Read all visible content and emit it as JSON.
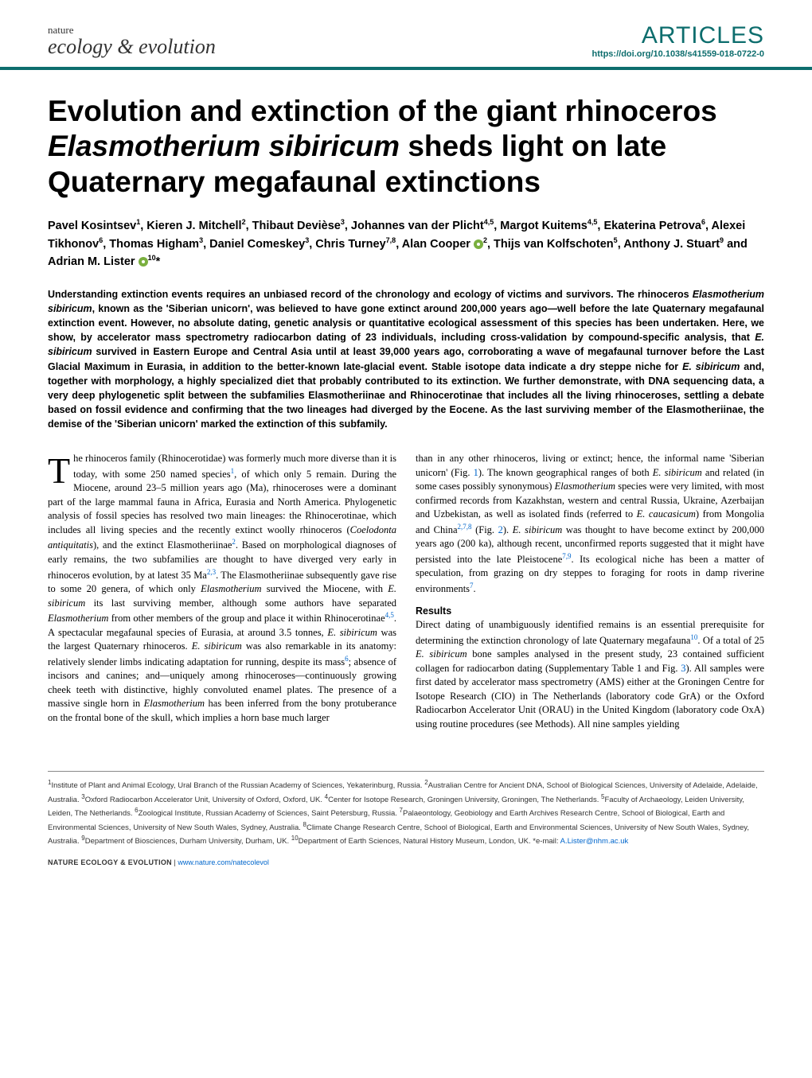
{
  "header": {
    "journal_top": "nature",
    "journal_bottom": "ecology & evolution",
    "section_label": "ARTICLES",
    "doi": "https://doi.org/10.1038/s41559-018-0722-0"
  },
  "title_parts": {
    "line1": "Evolution and extinction of the giant rhinoceros ",
    "species": "Elasmotherium sibiricum",
    "line2": " sheds light on late Quaternary megafaunal extinctions"
  },
  "authors_html": "Pavel Kosintsev<sup>1</sup>, Kieren J. Mitchell<sup>2</sup>, Thibaut Devièse<sup>3</sup>, Johannes van der Plicht<sup>4,5</sup>, Margot Kuitems<sup>4,5</sup>, Ekaterina Petrova<sup>6</sup>, Alexei Tikhonov<sup>6</sup>, Thomas Higham<sup>3</sup>, Daniel Comeskey<sup>3</sup>, Chris Turney<sup>7,8</sup>, Alan Cooper <span class='orcid' data-name='orcid-icon' data-interactable='false'></span><sup>2</sup>, Thijs van Kolfschoten<sup>5</sup>, Anthony J. Stuart<sup>9</sup> and Adrian M. Lister <span class='orcid' data-name='orcid-icon' data-interactable='false'></span><sup>10</sup>*",
  "abstract": "Understanding extinction events requires an unbiased record of the chronology and ecology of victims and survivors. The rhinoceros <span class='species'>Elasmotherium sibiricum</span>, known as the 'Siberian unicorn', was believed to have gone extinct around 200,000 years ago—well before the late Quaternary megafaunal extinction event. However, no absolute dating, genetic analysis or quantitative ecological assessment of this species has been undertaken. Here, we show, by accelerator mass spectrometry radiocarbon dating of 23 individuals, including cross-validation by compound-specific analysis, that <span class='species'>E. sibiricum</span> survived in Eastern Europe and Central Asia until at least 39,000 years ago, corroborating a wave of megafaunal turnover before the Last Glacial Maximum in Eurasia, in addition to the better-known late-glacial event. Stable isotope data indicate a dry steppe niche for <span class='species'>E. sibiricum</span> and, together with morphology, a highly specialized diet that probably contributed to its extinction. We further demonstrate, with DNA sequencing data, a very deep phylogenetic split between the subfamilies Elasmotheriinae and Rhinocerotinae that includes all the living rhinoceroses, settling a debate based on fossil evidence and confirming that the two lineages had diverged by the Eocene. As the last surviving member of the Elasmotheriinae, the demise of the 'Siberian unicorn' marked the extinction of this subfamily.",
  "body": {
    "p1": "he rhinoceros family (Rhinocerotidae) was formerly much more diverse than it is today, with some 250 named species<span class='ref'>1</span>, of which only 5 remain. During the Miocene, around 23–5 million years ago (Ma), rhinoceroses were a dominant part of the large mammal fauna in Africa, Eurasia and North America. Phylogenetic analysis of fossil species has resolved two main lineages: the Rhinocerotinae, which includes all living species and the recently extinct woolly rhinoceros (<span class='species'>Coelodonta antiquitatis</span>), and the extinct Elasmotheriinae<span class='ref'>2</span>. Based on morphological diagnoses of early remains, the two subfamilies are thought to have diverged very early in rhinoceros evolution, by at latest 35 Ma<span class='ref'>2,3</span>. The Elasmotheriinae subsequently gave rise to some 20 genera, of which only <span class='species'>Elasmotherium</span> survived the Miocene, with <span class='species'>E. sibiricum</span> its last surviving member, although some authors have separated <span class='species'>Elasmotherium</span> from other members of the group and place it within Rhinocerotinae<span class='ref'>4,5</span>. A spectacular megafaunal species of Eurasia, at around 3.5 tonnes, <span class='species'>E. sibiricum</span> was the largest Quaternary rhinoceros. <span class='species'>E. sibiricum</span> was also remarkable in its anatomy: relatively slender limbs indicating adaptation for running, despite its mass<span class='ref'>6</span>; absence of incisors and canines; and—uniquely among rhinoceroses—continuously growing cheek teeth with distinctive, highly convoluted enamel plates. The presence of a massive single horn in <span class='species'>Elasmotherium</span> has been inferred from the bony protuberance on the frontal bone of the skull, which implies a horn base much larger",
    "p2": "than in any other rhinoceros, living or extinct; hence, the informal name 'Siberian unicorn' (Fig. <span class='figref'>1</span>). The known geographical ranges of both <span class='species'>E. sibiricum</span> and related (in some cases possibly synonymous) <span class='species'>Elasmotherium</span> species were very limited, with most confirmed records from Kazakhstan, western and central Russia, Ukraine, Azerbaijan and Uzbekistan, as well as isolated finds (referred to <span class='species'>E. caucasicum</span>) from Mongolia and China<span class='ref'>2,7,8</span> (Fig. <span class='figref'>2</span>). <span class='species'>E. sibiricum</span> was thought to have become extinct by 200,000 years ago (200 ka), although recent, unconfirmed reports suggested that it might have persisted into the late Pleistocene<span class='ref'>7,9</span>. Its ecological niche has been a matter of speculation, from grazing on dry steppes to foraging for roots in damp riverine environments<span class='ref'>7</span>.",
    "results_head": "Results",
    "p3": "Direct dating of unambiguously identified remains is an essential prerequisite for determining the extinction chronology of late Quaternary megafauna<span class='ref'>10</span>. Of a total of 25 <span class='species'>E. sibiricum</span> bone samples analysed in the present study, 23 contained sufficient collagen for radiocarbon dating (Supplementary Table 1 and Fig. <span class='figref'>3</span>). All samples were first dated by accelerator mass spectrometry (AMS) either at the Groningen Centre for Isotope Research (CIO) in The Netherlands (laboratory code GrA) or the Oxford Radiocarbon Accelerator Unit (ORAU) in the United Kingdom (laboratory code OxA) using routine procedures (see Methods). All nine samples yielding"
  },
  "affiliations": "<sup>1</sup>Institute of Plant and Animal Ecology, Ural Branch of the Russian Academy of Sciences, Yekaterinburg, Russia. <sup>2</sup>Australian Centre for Ancient DNA, School of Biological Sciences, University of Adelaide, Adelaide, Australia. <sup>3</sup>Oxford Radiocarbon Accelerator Unit, University of Oxford, Oxford, UK. <sup>4</sup>Center for Isotope Research, Groningen University, Groningen, The Netherlands. <sup>5</sup>Faculty of Archaeology, Leiden University, Leiden, The Netherlands. <sup>6</sup>Zoological Institute, Russian Academy of Sciences, Saint Petersburg, Russia. <sup>7</sup>Palaeontology, Geobiology and Earth Archives Research Centre, School of Biological, Earth and Environmental Sciences, University of New South Wales, Sydney, Australia. <sup>8</sup>Climate Change Research Centre, School of Biological, Earth and Environmental Sciences, University of New South Wales, Sydney, Australia. <sup>9</sup>Department of Biosciences, Durham University, Durham, UK. <sup>10</sup>Department of Earth Sciences, Natural History Museum, London, UK. *e-mail: <span class='email'>A.Lister@nhm.ac.uk</span>",
  "footer": {
    "journal": "NATURE ECOLOGY & EVOLUTION",
    "sep": " | ",
    "url": "www.nature.com/natecolevol"
  },
  "colors": {
    "accent": "#0d6d6d",
    "link": "#0066cc",
    "orcid": "#7aaf3f",
    "text": "#000000",
    "background": "#ffffff"
  }
}
